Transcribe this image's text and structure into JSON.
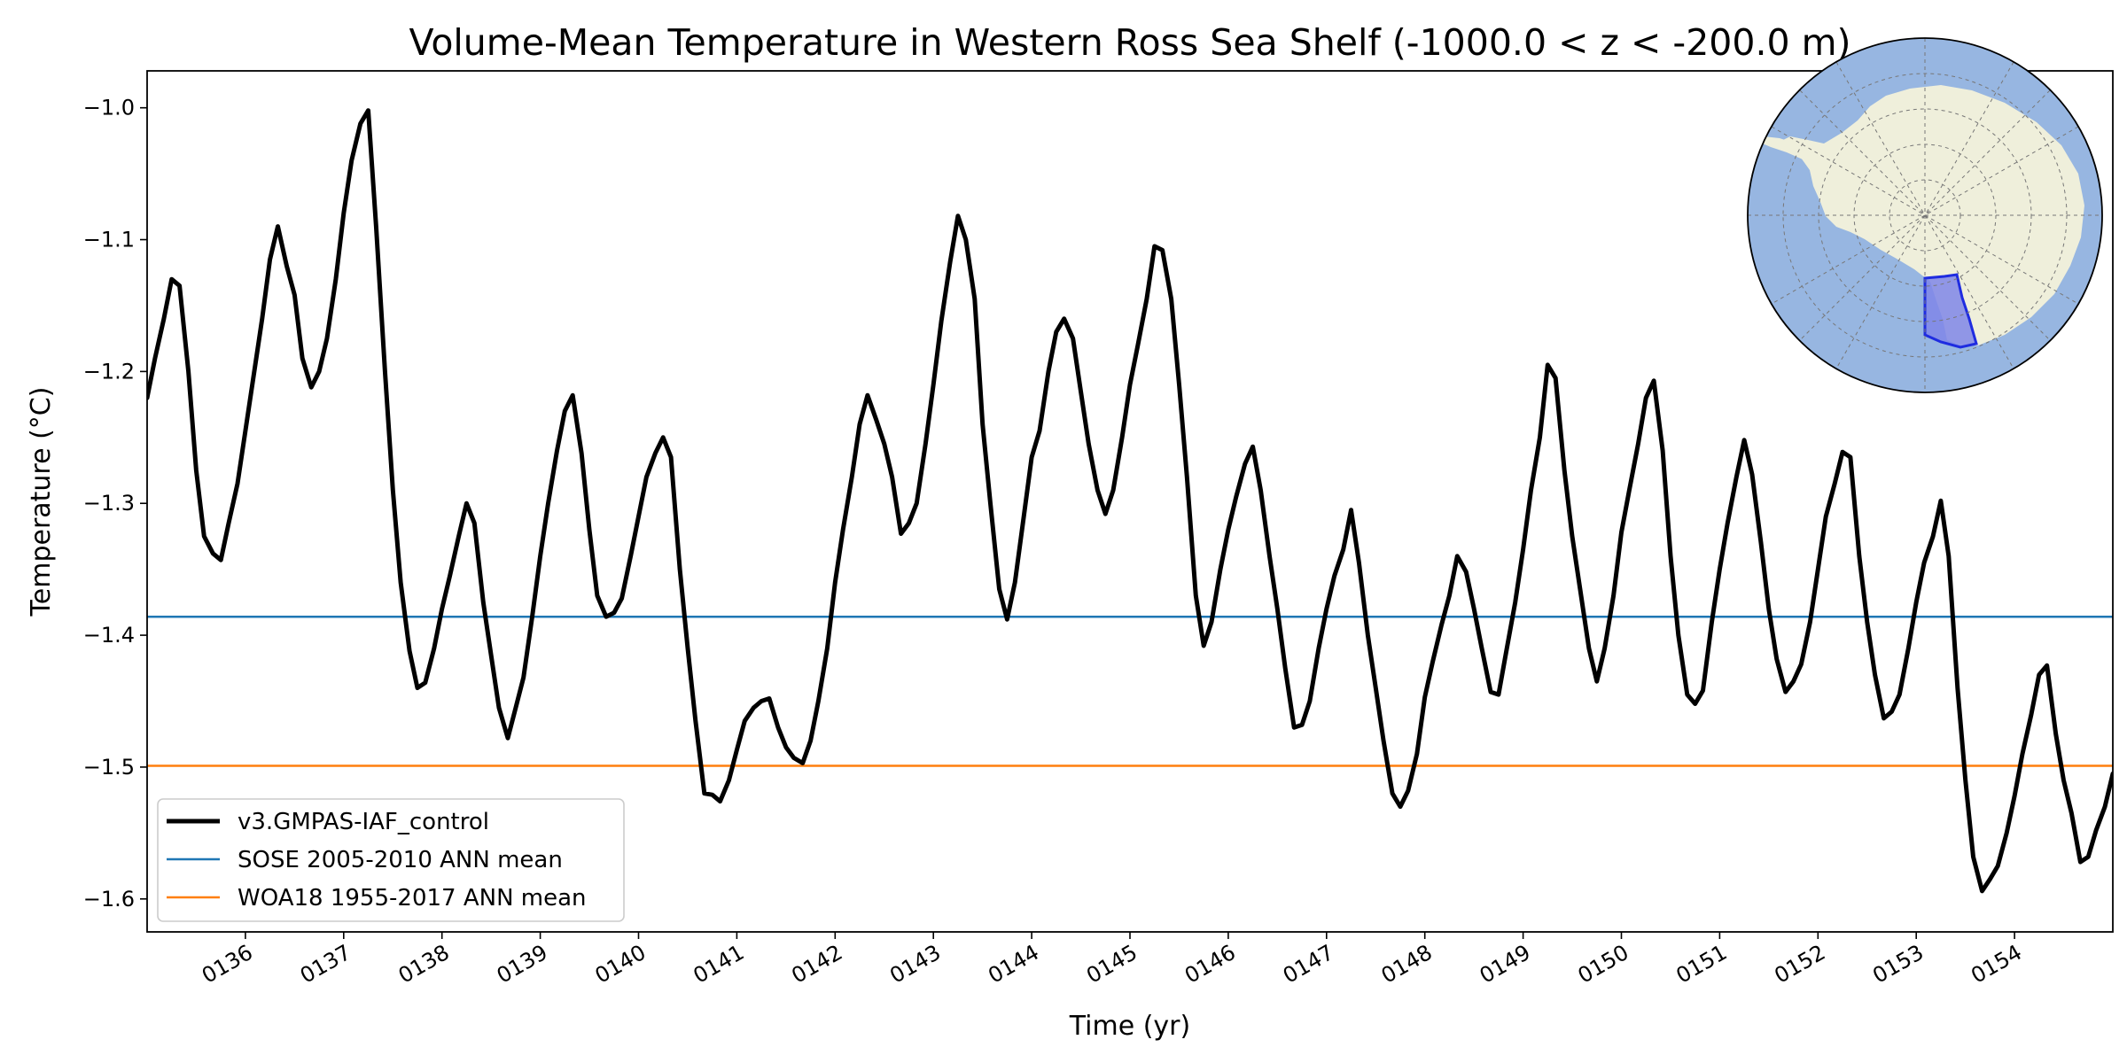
{
  "chart_data": {
    "type": "line",
    "title": "Volume-Mean Temperature in Western Ross Sea Shelf (-1000.0 < z < -200.0 m)",
    "xlabel": "Time (yr)",
    "ylabel": "Temperature (°C)",
    "xlim": [
      135.0,
      155.0
    ],
    "ylim": [
      -1.625,
      -0.972
    ],
    "grid": false,
    "x_ticks": [
      136,
      137,
      138,
      139,
      140,
      141,
      142,
      143,
      144,
      145,
      146,
      147,
      148,
      149,
      150,
      151,
      152,
      153,
      154
    ],
    "x_tick_labels": [
      "0136",
      "0137",
      "0138",
      "0139",
      "0140",
      "0141",
      "0142",
      "0143",
      "0144",
      "0145",
      "0146",
      "0147",
      "0148",
      "0149",
      "0150",
      "0151",
      "0152",
      "0153",
      "0154"
    ],
    "y_ticks": [
      -1.6,
      -1.5,
      -1.4,
      -1.3,
      -1.2,
      -1.1,
      -1.0
    ],
    "y_tick_labels": [
      "−1.6",
      "−1.5",
      "−1.4",
      "−1.3",
      "−1.2",
      "−1.1",
      "−1.0"
    ],
    "legend_position": "lower-left",
    "series": [
      {
        "name": "v3.GMPAS-IAF_control",
        "color": "#000000",
        "points": [
          [
            135.0,
            -1.22
          ],
          [
            135.08,
            -1.19
          ],
          [
            135.17,
            -1.16
          ],
          [
            135.25,
            -1.13
          ],
          [
            135.33,
            -1.135
          ],
          [
            135.42,
            -1.2
          ],
          [
            135.5,
            -1.275
          ],
          [
            135.58,
            -1.325
          ],
          [
            135.67,
            -1.338
          ],
          [
            135.75,
            -1.343
          ],
          [
            135.83,
            -1.315
          ],
          [
            135.92,
            -1.285
          ],
          [
            136.0,
            -1.245
          ],
          [
            136.08,
            -1.205
          ],
          [
            136.17,
            -1.16
          ],
          [
            136.25,
            -1.115
          ],
          [
            136.33,
            -1.09
          ],
          [
            136.42,
            -1.12
          ],
          [
            136.5,
            -1.142
          ],
          [
            136.58,
            -1.19
          ],
          [
            136.67,
            -1.212
          ],
          [
            136.75,
            -1.2
          ],
          [
            136.83,
            -1.175
          ],
          [
            136.92,
            -1.13
          ],
          [
            137.0,
            -1.08
          ],
          [
            137.08,
            -1.04
          ],
          [
            137.17,
            -1.012
          ],
          [
            137.25,
            -1.002
          ],
          [
            137.33,
            -1.09
          ],
          [
            137.42,
            -1.2
          ],
          [
            137.5,
            -1.29
          ],
          [
            137.58,
            -1.36
          ],
          [
            137.67,
            -1.412
          ],
          [
            137.75,
            -1.44
          ],
          [
            137.83,
            -1.436
          ],
          [
            137.92,
            -1.41
          ],
          [
            138.0,
            -1.38
          ],
          [
            138.08,
            -1.355
          ],
          [
            138.17,
            -1.325
          ],
          [
            138.25,
            -1.3
          ],
          [
            138.33,
            -1.315
          ],
          [
            138.42,
            -1.375
          ],
          [
            138.5,
            -1.415
          ],
          [
            138.58,
            -1.455
          ],
          [
            138.67,
            -1.478
          ],
          [
            138.75,
            -1.455
          ],
          [
            138.83,
            -1.432
          ],
          [
            138.92,
            -1.385
          ],
          [
            139.0,
            -1.34
          ],
          [
            139.08,
            -1.3
          ],
          [
            139.17,
            -1.26
          ],
          [
            139.25,
            -1.23
          ],
          [
            139.33,
            -1.218
          ],
          [
            139.42,
            -1.262
          ],
          [
            139.5,
            -1.32
          ],
          [
            139.58,
            -1.37
          ],
          [
            139.67,
            -1.386
          ],
          [
            139.75,
            -1.383
          ],
          [
            139.83,
            -1.372
          ],
          [
            139.92,
            -1.34
          ],
          [
            140.0,
            -1.31
          ],
          [
            140.08,
            -1.28
          ],
          [
            140.17,
            -1.262
          ],
          [
            140.25,
            -1.25
          ],
          [
            140.33,
            -1.265
          ],
          [
            140.42,
            -1.35
          ],
          [
            140.5,
            -1.41
          ],
          [
            140.58,
            -1.465
          ],
          [
            140.67,
            -1.52
          ],
          [
            140.75,
            -1.521
          ],
          [
            140.83,
            -1.526
          ],
          [
            140.92,
            -1.51
          ],
          [
            141.0,
            -1.487
          ],
          [
            141.08,
            -1.465
          ],
          [
            141.17,
            -1.455
          ],
          [
            141.25,
            -1.45
          ],
          [
            141.33,
            -1.448
          ],
          [
            141.42,
            -1.47
          ],
          [
            141.5,
            -1.485
          ],
          [
            141.58,
            -1.493
          ],
          [
            141.67,
            -1.497
          ],
          [
            141.75,
            -1.48
          ],
          [
            141.83,
            -1.45
          ],
          [
            141.92,
            -1.41
          ],
          [
            142.0,
            -1.36
          ],
          [
            142.08,
            -1.32
          ],
          [
            142.17,
            -1.28
          ],
          [
            142.25,
            -1.24
          ],
          [
            142.33,
            -1.218
          ],
          [
            142.42,
            -1.237
          ],
          [
            142.5,
            -1.255
          ],
          [
            142.58,
            -1.28
          ],
          [
            142.67,
            -1.323
          ],
          [
            142.75,
            -1.315
          ],
          [
            142.83,
            -1.3
          ],
          [
            142.92,
            -1.255
          ],
          [
            143.0,
            -1.21
          ],
          [
            143.08,
            -1.162
          ],
          [
            143.17,
            -1.117
          ],
          [
            143.25,
            -1.082
          ],
          [
            143.33,
            -1.1
          ],
          [
            143.42,
            -1.145
          ],
          [
            143.5,
            -1.24
          ],
          [
            143.58,
            -1.3
          ],
          [
            143.67,
            -1.365
          ],
          [
            143.75,
            -1.388
          ],
          [
            143.83,
            -1.36
          ],
          [
            143.92,
            -1.31
          ],
          [
            144.0,
            -1.265
          ],
          [
            144.08,
            -1.245
          ],
          [
            144.17,
            -1.2
          ],
          [
            144.25,
            -1.17
          ],
          [
            144.33,
            -1.16
          ],
          [
            144.42,
            -1.175
          ],
          [
            144.5,
            -1.215
          ],
          [
            144.58,
            -1.255
          ],
          [
            144.67,
            -1.29
          ],
          [
            144.75,
            -1.308
          ],
          [
            144.83,
            -1.29
          ],
          [
            144.92,
            -1.25
          ],
          [
            145.0,
            -1.21
          ],
          [
            145.08,
            -1.18
          ],
          [
            145.17,
            -1.145
          ],
          [
            145.25,
            -1.105
          ],
          [
            145.33,
            -1.108
          ],
          [
            145.42,
            -1.145
          ],
          [
            145.5,
            -1.21
          ],
          [
            145.58,
            -1.28
          ],
          [
            145.67,
            -1.37
          ],
          [
            145.75,
            -1.408
          ],
          [
            145.83,
            -1.39
          ],
          [
            145.92,
            -1.35
          ],
          [
            146.0,
            -1.32
          ],
          [
            146.08,
            -1.295
          ],
          [
            146.17,
            -1.27
          ],
          [
            146.25,
            -1.257
          ],
          [
            146.33,
            -1.29
          ],
          [
            146.42,
            -1.34
          ],
          [
            146.5,
            -1.38
          ],
          [
            146.58,
            -1.425
          ],
          [
            146.67,
            -1.47
          ],
          [
            146.75,
            -1.468
          ],
          [
            146.83,
            -1.45
          ],
          [
            146.92,
            -1.41
          ],
          [
            147.0,
            -1.38
          ],
          [
            147.08,
            -1.355
          ],
          [
            147.17,
            -1.335
          ],
          [
            147.25,
            -1.305
          ],
          [
            147.33,
            -1.345
          ],
          [
            147.42,
            -1.4
          ],
          [
            147.5,
            -1.44
          ],
          [
            147.58,
            -1.48
          ],
          [
            147.67,
            -1.52
          ],
          [
            147.75,
            -1.53
          ],
          [
            147.83,
            -1.518
          ],
          [
            147.92,
            -1.49
          ],
          [
            148.0,
            -1.447
          ],
          [
            148.08,
            -1.42
          ],
          [
            148.17,
            -1.392
          ],
          [
            148.25,
            -1.37
          ],
          [
            148.33,
            -1.34
          ],
          [
            148.42,
            -1.352
          ],
          [
            148.5,
            -1.38
          ],
          [
            148.58,
            -1.41
          ],
          [
            148.67,
            -1.443
          ],
          [
            148.75,
            -1.445
          ],
          [
            148.83,
            -1.412
          ],
          [
            148.92,
            -1.375
          ],
          [
            149.0,
            -1.335
          ],
          [
            149.08,
            -1.29
          ],
          [
            149.17,
            -1.25
          ],
          [
            149.25,
            -1.195
          ],
          [
            149.33,
            -1.205
          ],
          [
            149.42,
            -1.275
          ],
          [
            149.5,
            -1.325
          ],
          [
            149.58,
            -1.365
          ],
          [
            149.67,
            -1.41
          ],
          [
            149.75,
            -1.435
          ],
          [
            149.83,
            -1.41
          ],
          [
            149.92,
            -1.37
          ],
          [
            150.0,
            -1.322
          ],
          [
            150.08,
            -1.29
          ],
          [
            150.17,
            -1.255
          ],
          [
            150.25,
            -1.22
          ],
          [
            150.33,
            -1.207
          ],
          [
            150.42,
            -1.26
          ],
          [
            150.5,
            -1.34
          ],
          [
            150.58,
            -1.4
          ],
          [
            150.67,
            -1.445
          ],
          [
            150.75,
            -1.452
          ],
          [
            150.83,
            -1.442
          ],
          [
            150.92,
            -1.39
          ],
          [
            151.0,
            -1.35
          ],
          [
            151.08,
            -1.315
          ],
          [
            151.17,
            -1.28
          ],
          [
            151.25,
            -1.252
          ],
          [
            151.33,
            -1.278
          ],
          [
            151.42,
            -1.33
          ],
          [
            151.5,
            -1.38
          ],
          [
            151.58,
            -1.418
          ],
          [
            151.67,
            -1.443
          ],
          [
            151.75,
            -1.435
          ],
          [
            151.83,
            -1.422
          ],
          [
            151.92,
            -1.39
          ],
          [
            152.0,
            -1.35
          ],
          [
            152.08,
            -1.31
          ],
          [
            152.17,
            -1.285
          ],
          [
            152.25,
            -1.261
          ],
          [
            152.33,
            -1.265
          ],
          [
            152.42,
            -1.34
          ],
          [
            152.5,
            -1.39
          ],
          [
            152.58,
            -1.43
          ],
          [
            152.67,
            -1.463
          ],
          [
            152.75,
            -1.458
          ],
          [
            152.83,
            -1.445
          ],
          [
            152.92,
            -1.41
          ],
          [
            153.0,
            -1.375
          ],
          [
            153.08,
            -1.345
          ],
          [
            153.17,
            -1.325
          ],
          [
            153.25,
            -1.298
          ],
          [
            153.33,
            -1.34
          ],
          [
            153.42,
            -1.44
          ],
          [
            153.5,
            -1.51
          ],
          [
            153.58,
            -1.568
          ],
          [
            153.67,
            -1.594
          ],
          [
            153.75,
            -1.585
          ],
          [
            153.83,
            -1.575
          ],
          [
            153.92,
            -1.55
          ],
          [
            154.0,
            -1.522
          ],
          [
            154.08,
            -1.49
          ],
          [
            154.17,
            -1.46
          ],
          [
            154.25,
            -1.43
          ],
          [
            154.33,
            -1.423
          ],
          [
            154.42,
            -1.475
          ],
          [
            154.5,
            -1.51
          ],
          [
            154.58,
            -1.535
          ],
          [
            154.67,
            -1.572
          ],
          [
            154.75,
            -1.568
          ],
          [
            154.83,
            -1.548
          ],
          [
            154.92,
            -1.53
          ],
          [
            155.0,
            -1.505
          ]
        ]
      },
      {
        "name": "SOSE 2005-2010 ANN mean",
        "color": "#1f77b4",
        "value": -1.386
      },
      {
        "name": "WOA18 1955-2017 ANN mean",
        "color": "#ff7f0e",
        "value": -1.499
      }
    ],
    "inset_map": {
      "type": "south-polar-stereographic-map",
      "ocean_color": "#97b6e1",
      "land_color": "#efefdb",
      "region_fill_color": "#7f86e8",
      "region_edge_color": "#1f2ce0",
      "region_name": "Western Ross Sea Shelf"
    }
  }
}
